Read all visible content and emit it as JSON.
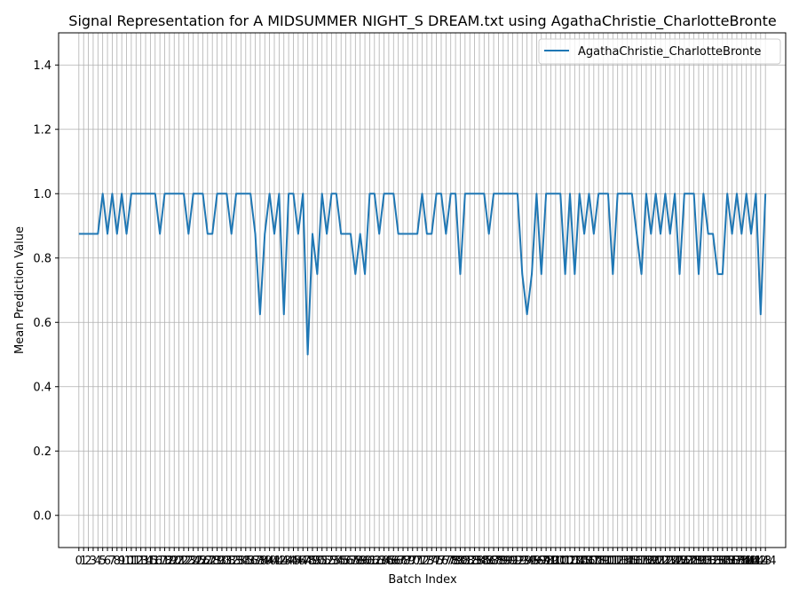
{
  "chart_data": {
    "type": "line",
    "title": "Signal Representation for A MIDSUMMER NIGHT_S DREAM.txt using AgathaChristie_CharlotteBronte",
    "xlabel": "Batch Index",
    "ylabel": "Mean Prediction Value",
    "xlim": [
      -4.25,
      148.25
    ],
    "ylim": [
      -0.1,
      1.5
    ],
    "yticks": [
      0.0,
      0.2,
      0.4,
      0.6,
      0.8,
      1.0,
      1.2,
      1.4
    ],
    "ytick_labels": [
      "0.0",
      "0.2",
      "0.4",
      "0.6",
      "0.8",
      "1.0",
      "1.2",
      "1.4"
    ],
    "grid": true,
    "legend_position": "upper right",
    "series": [
      {
        "name": "AgathaChristie_CharlotteBronte",
        "color": "#1f77b4",
        "values": [
          0.875,
          0.875,
          0.875,
          0.875,
          0.875,
          1.0,
          0.875,
          1.0,
          0.875,
          1.0,
          0.875,
          1.0,
          1.0,
          1.0,
          1.0,
          1.0,
          1.0,
          0.875,
          1.0,
          1.0,
          1.0,
          1.0,
          1.0,
          0.875,
          1.0,
          1.0,
          1.0,
          0.875,
          0.875,
          1.0,
          1.0,
          1.0,
          0.875,
          1.0,
          1.0,
          1.0,
          1.0,
          0.875,
          0.625,
          0.875,
          1.0,
          0.875,
          1.0,
          0.625,
          1.0,
          1.0,
          0.875,
          1.0,
          0.5,
          0.875,
          0.75,
          1.0,
          0.875,
          1.0,
          1.0,
          0.875,
          0.875,
          0.875,
          0.75,
          0.875,
          0.75,
          1.0,
          1.0,
          0.875,
          1.0,
          1.0,
          1.0,
          0.875,
          0.875,
          0.875,
          0.875,
          0.875,
          1.0,
          0.875,
          0.875,
          1.0,
          1.0,
          0.875,
          1.0,
          1.0,
          0.75,
          1.0,
          1.0,
          1.0,
          1.0,
          1.0,
          0.875,
          1.0,
          1.0,
          1.0,
          1.0,
          1.0,
          1.0,
          0.75,
          0.625,
          0.75,
          1.0,
          0.75,
          1.0,
          1.0,
          1.0,
          1.0,
          0.75,
          1.0,
          0.75,
          1.0,
          0.875,
          1.0,
          0.875,
          1.0,
          1.0,
          1.0,
          0.75,
          1.0,
          1.0,
          1.0,
          1.0,
          0.875,
          0.75,
          1.0,
          0.875,
          1.0,
          0.875,
          1.0,
          0.875,
          1.0,
          0.75,
          1.0,
          1.0,
          1.0,
          0.75,
          1.0,
          0.875,
          0.875,
          0.75,
          0.75,
          1.0,
          0.875,
          1.0,
          0.875,
          1.0,
          0.875,
          1.0,
          0.625,
          1.0
        ]
      }
    ]
  }
}
